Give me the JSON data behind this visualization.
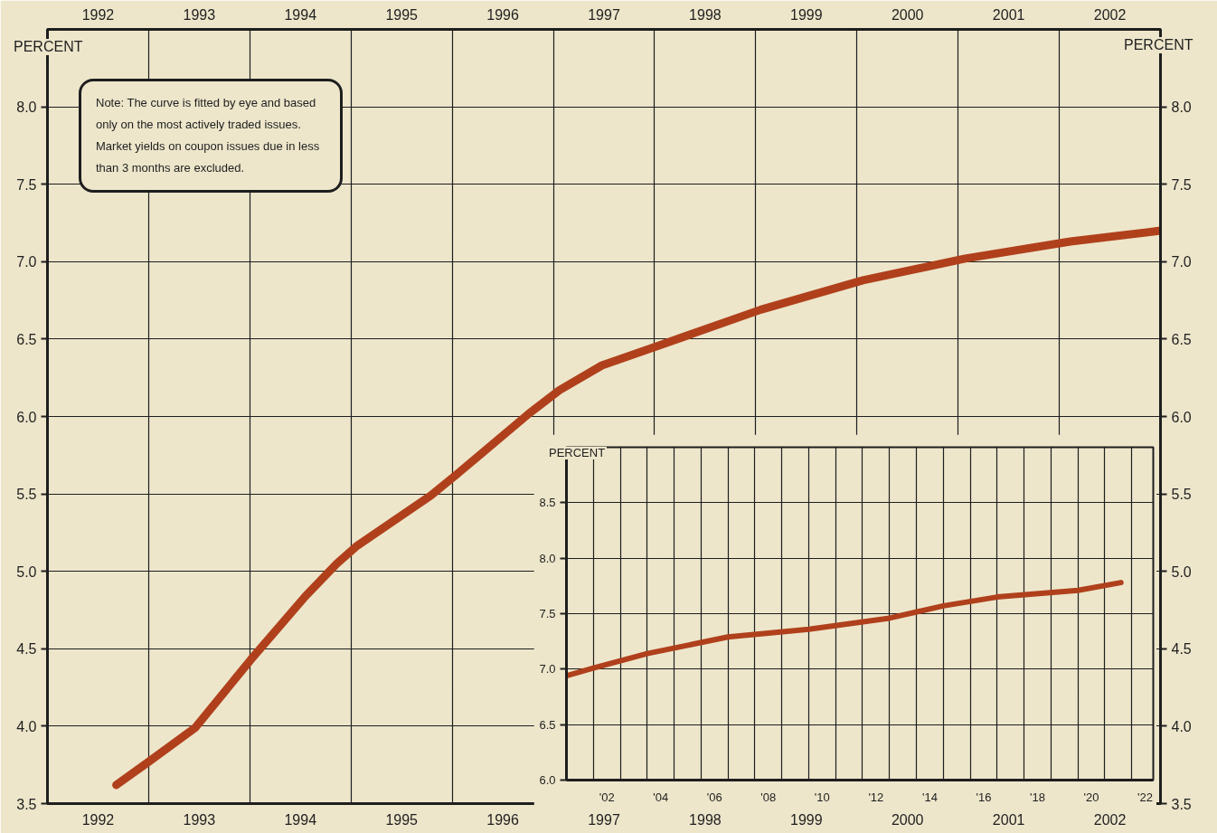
{
  "chart_data": [
    {
      "type": "line",
      "ylabel": "PERCENT",
      "y2label": "PERCENT",
      "annotations": [
        "Note: The curve is fitted by eye and based only on the most actively traded issues. Market yields on coupon issues due in less than 3 months are excluded."
      ],
      "x": [
        1992.18,
        1992.5,
        1992.96,
        1993.51,
        1994.05,
        1994.36,
        1994.55,
        1995.29,
        1995.57,
        1996.26,
        1996.56,
        1996.98,
        1997.55,
        1998.55,
        1999.56,
        2000.57,
        2001.61,
        2002.5
      ],
      "series": [
        {
          "color": "#b0401c",
          "values": [
            3.62,
            3.77,
            3.99,
            4.43,
            4.84,
            5.05,
            5.16,
            5.49,
            5.64,
            6.02,
            6.17,
            6.33,
            6.46,
            6.69,
            6.88,
            7.02,
            7.13,
            7.2
          ]
        }
      ],
      "xlim": [
        1991.5,
        2002.5
      ],
      "xticks": [
        1992,
        1993,
        1994,
        1995,
        1996,
        1997,
        1998,
        1999,
        2000,
        2001,
        2002,
        {
          "value": 1992.5,
          "label": null
        },
        {
          "value": 1993.5,
          "label": null
        },
        {
          "value": 1994.5,
          "label": null
        },
        {
          "value": 1995.5,
          "label": null
        },
        {
          "value": 1996.5,
          "label": null
        },
        {
          "value": 1997.5,
          "label": null
        },
        {
          "value": 1998.5,
          "label": null
        },
        {
          "value": 1999.5,
          "label": null
        },
        {
          "value": 2000.5,
          "label": null
        },
        {
          "value": 2001.5,
          "label": null
        }
      ],
      "x2lim": [
        1991.5,
        2002.5
      ],
      "x2ticks": [
        1992,
        1993,
        1994,
        1995,
        1996,
        1997,
        1998,
        1999,
        2000,
        2001,
        2002
      ],
      "ylim": [
        3.5,
        8.5
      ],
      "yticks": [
        3.5,
        {
          "value": 4,
          "label": "4.0"
        },
        4.5,
        {
          "value": 5,
          "label": "5.0"
        },
        5.5,
        {
          "value": 6,
          "label": "6.0"
        },
        6.5,
        {
          "value": 7,
          "label": "7.0"
        },
        7.5,
        {
          "value": 8,
          "label": "8.0"
        }
      ],
      "y2lim": [
        3.5,
        8.5
      ],
      "y2ticks": [
        3.5,
        {
          "value": 4,
          "label": "4.0"
        },
        4.5,
        {
          "value": 5,
          "label": "5.0"
        },
        5.5,
        {
          "value": 6,
          "label": "6.0"
        },
        6.5,
        {
          "value": 7,
          "label": "7.0"
        },
        7.5,
        {
          "value": 8,
          "label": "8.0"
        }
      ],
      "grid": true
    },
    {
      "type": "line",
      "ylabel": "PERCENT",
      "x": [
        2000.5,
        2001.5,
        2003.5,
        2006.5,
        2009.5,
        2012.5,
        2014.5,
        2016.5,
        2019.5,
        2021.1
      ],
      "series": [
        {
          "color": "#b0401c",
          "values": [
            6.94,
            7.01,
            7.14,
            7.29,
            7.36,
            7.46,
            7.57,
            7.65,
            7.71,
            7.78
          ]
        }
      ],
      "xlim": [
        2000.5,
        2022.3
      ],
      "xticks": [
        {
          "value": 2002,
          "label": "'02"
        },
        {
          "value": 2004,
          "label": "'04"
        },
        {
          "value": 2006,
          "label": "'06"
        },
        {
          "value": 2008,
          "label": "'08"
        },
        {
          "value": 2010,
          "label": "'10"
        },
        {
          "value": 2012,
          "label": "'12"
        },
        {
          "value": 2014,
          "label": "'14"
        },
        {
          "value": 2016,
          "label": "'16"
        },
        {
          "value": 2018,
          "label": "'18"
        },
        {
          "value": 2020,
          "label": "'20"
        },
        {
          "value": 2022,
          "label": "'22"
        },
        {
          "value": 2001.5,
          "label": null
        },
        {
          "value": 2002.5,
          "label": null
        },
        {
          "value": 2003.5,
          "label": null
        },
        {
          "value": 2004.5,
          "label": null
        },
        {
          "value": 2005.5,
          "label": null
        },
        {
          "value": 2006.5,
          "label": null
        },
        {
          "value": 2007.5,
          "label": null
        },
        {
          "value": 2008.5,
          "label": null
        },
        {
          "value": 2009.5,
          "label": null
        },
        {
          "value": 2010.5,
          "label": null
        },
        {
          "value": 2011.5,
          "label": null
        },
        {
          "value": 2012.5,
          "label": null
        },
        {
          "value": 2013.5,
          "label": null
        },
        {
          "value": 2014.5,
          "label": null
        },
        {
          "value": 2015.5,
          "label": null
        },
        {
          "value": 2016.5,
          "label": null
        },
        {
          "value": 2017.5,
          "label": null
        },
        {
          "value": 2018.5,
          "label": null
        },
        {
          "value": 2019.5,
          "label": null
        },
        {
          "value": 2020.5,
          "label": null
        },
        {
          "value": 2021.5,
          "label": null
        }
      ],
      "ylim": [
        6.0,
        9.0
      ],
      "yticks": [
        {
          "value": 6,
          "label": "6.0"
        },
        6.5,
        {
          "value": 7,
          "label": "7.0"
        },
        7.5,
        {
          "value": 8,
          "label": "8.0"
        },
        8.5
      ],
      "grid": true
    }
  ]
}
